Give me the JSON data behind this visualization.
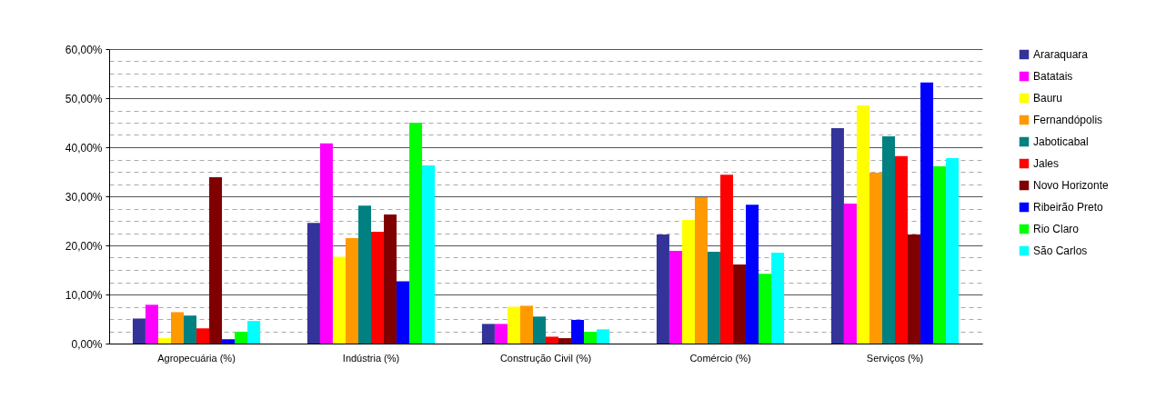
{
  "chart_data": {
    "type": "bar",
    "categories": [
      "Agropecuária  (%)",
      "Indústria (%)",
      "Construção Civil (%)",
      "Comércio (%)",
      "Serviços (%)"
    ],
    "series": [
      {
        "name": "Araraquara",
        "color": "#333399",
        "values": [
          5.1,
          24.6,
          4.0,
          22.2,
          43.9
        ]
      },
      {
        "name": "Batatais",
        "color": "#ff00ff",
        "values": [
          7.9,
          40.8,
          4.0,
          18.9,
          28.5
        ]
      },
      {
        "name": "Bauru",
        "color": "#ffff00",
        "values": [
          1.1,
          17.7,
          7.5,
          25.2,
          48.5
        ]
      },
      {
        "name": "Fernandópolis",
        "color": "#ff9900",
        "values": [
          6.4,
          21.5,
          7.7,
          29.8,
          34.8
        ]
      },
      {
        "name": "Jaboticabal",
        "color": "#008080",
        "values": [
          5.7,
          28.1,
          5.5,
          18.7,
          42.2
        ]
      },
      {
        "name": "Jales",
        "color": "#ff0000",
        "values": [
          3.1,
          22.8,
          1.4,
          34.4,
          38.2
        ]
      },
      {
        "name": "Novo Horizonte",
        "color": "#800000",
        "values": [
          33.9,
          26.3,
          1.1,
          16.1,
          22.2
        ]
      },
      {
        "name": "Ribeirão Preto",
        "color": "#0000ff",
        "values": [
          0.9,
          12.7,
          4.8,
          28.3,
          53.2
        ]
      },
      {
        "name": "Rio Claro",
        "color": "#00ff00",
        "values": [
          2.4,
          45.0,
          2.4,
          14.2,
          36.1
        ]
      },
      {
        "name": "São Carlos",
        "color": "#00ffff",
        "values": [
          4.6,
          36.3,
          2.9,
          18.5,
          37.8
        ]
      }
    ],
    "ylim": [
      0,
      60
    ],
    "yticks": [
      {
        "value": 0,
        "label": "0,00%"
      },
      {
        "value": 2.5,
        "label": null
      },
      {
        "value": 5,
        "label": null
      },
      {
        "value": 7.5,
        "label": null
      },
      {
        "value": 10,
        "label": "10,00%"
      },
      {
        "value": 12.5,
        "label": null
      },
      {
        "value": 15,
        "label": null
      },
      {
        "value": 17.5,
        "label": null
      },
      {
        "value": 20,
        "label": "20,00%"
      },
      {
        "value": 22.5,
        "label": null
      },
      {
        "value": 25,
        "label": null
      },
      {
        "value": 27.5,
        "label": null
      },
      {
        "value": 30,
        "label": "30,00%"
      },
      {
        "value": 32.5,
        "label": null
      },
      {
        "value": 35,
        "label": null
      },
      {
        "value": 37.5,
        "label": null
      },
      {
        "value": 40,
        "label": "40,00%"
      },
      {
        "value": 42.5,
        "label": null
      },
      {
        "value": 45,
        "label": null
      },
      {
        "value": 47.5,
        "label": null
      },
      {
        "value": 50,
        "label": "50,00%"
      },
      {
        "value": 52.5,
        "label": null
      },
      {
        "value": 55,
        "label": null
      },
      {
        "value": 57.5,
        "label": null
      },
      {
        "value": 60,
        "label": "60,00%"
      }
    ],
    "grid": "y",
    "legend": "right"
  }
}
